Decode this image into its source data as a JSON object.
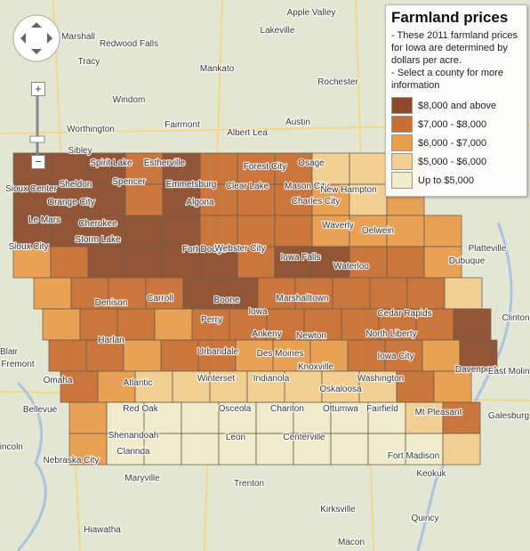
{
  "legend": {
    "title": "Farmland prices",
    "notes": [
      "- These 2011 farmland prices for Iowa are determined by dollars per acre.",
      "- Select a county for more information"
    ],
    "items": [
      {
        "label": "$8,000 and above",
        "color": "#8c4a2a"
      },
      {
        "label": "$7,000 - $8,000",
        "color": "#c96d30"
      },
      {
        "label": "$6,000 - $7,000",
        "color": "#e99c4b"
      },
      {
        "label": "$5,000 - $6,000",
        "color": "#f4cf8f"
      },
      {
        "label": "Up to $5,000",
        "color": "#f2ecca"
      }
    ]
  },
  "zoom": {
    "in": "+",
    "out": "−"
  },
  "places": [
    "Apple Valley",
    "Lakeville",
    "Marshall",
    "Redwood Falls",
    "Tracy",
    "Mankato",
    "Windom",
    "Rochester",
    "Fairmont",
    "Austin",
    "Albert Lea",
    "Worthington",
    "Sibley",
    "Spirit Lake",
    "Estherville",
    "Forest City",
    "Osage",
    "Sheldon",
    "Spencer",
    "Emmetsburg",
    "Clear Lake",
    "Mason City",
    "New Hampton",
    "Orange City",
    "Algona",
    "Charles City",
    "Sioux Center",
    "Le Mars",
    "Cherokee",
    "Storm Lake",
    "Waverly",
    "Oelwein",
    "Fort Dodge",
    "Webster City",
    "Iowa Falls",
    "Waterloo",
    "Sioux City",
    "Dubuque",
    "Platteville",
    "Denison",
    "Carroll",
    "Boone",
    "Iowa",
    "Marshalltown",
    "Cedar Rapids",
    "Perry",
    "Ankeny",
    "Newton",
    "Harlan",
    "Urbandale",
    "Des Moines",
    "North Liberty",
    "Iowa City",
    "Davenport",
    "East Moline",
    "Clinton",
    "Atlantic",
    "Winterset",
    "Indianola",
    "Knoxville",
    "Oskaloosa",
    "Washington",
    "Blair",
    "Fremont",
    "Omaha",
    "Bellevue",
    "Lincoln",
    "Red Oak",
    "Osceola",
    "Chariton",
    "Ottumwa",
    "Fairfield",
    "Mt Pleasant",
    "Galesburg",
    "Shenandoah",
    "Clarinda",
    "Leon",
    "Centerville",
    "Fort Madison",
    "Keokuk",
    "Nebraska City",
    "Maryville",
    "Kirksville",
    "Quincy",
    "Macon",
    "Hiawatha",
    "Trenton"
  ]
}
